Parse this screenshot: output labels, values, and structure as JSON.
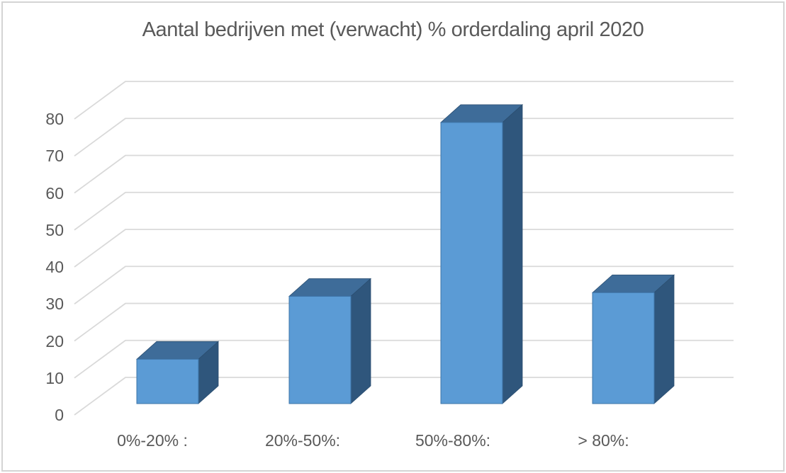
{
  "chart_data": {
    "type": "bar",
    "variant": "3d-column",
    "title": "Aantal bedrijven met (verwacht) % orderdaling april 2020",
    "categories": [
      "0%-20% :",
      "20%-50%:",
      "50%-80%:",
      "> 80%:"
    ],
    "values": [
      12,
      29,
      76,
      30
    ],
    "xlabel": "",
    "ylabel": "",
    "ylim": [
      0,
      80
    ],
    "y_ticks": [
      0,
      10,
      20,
      30,
      40,
      50,
      60,
      70,
      80
    ],
    "grid": true,
    "legend_position": "none",
    "colors": {
      "bar_front": "#5B9BD5",
      "bar_top": "#3E6C99",
      "bar_side": "#2F567C",
      "bar_edge_front": "#3E74A8",
      "bar_edge_dark": "#2B4E70",
      "gridline": "#D9D9D9",
      "text": "#595959",
      "background": "#FFFFFF",
      "border": "#D4D4D4"
    }
  }
}
